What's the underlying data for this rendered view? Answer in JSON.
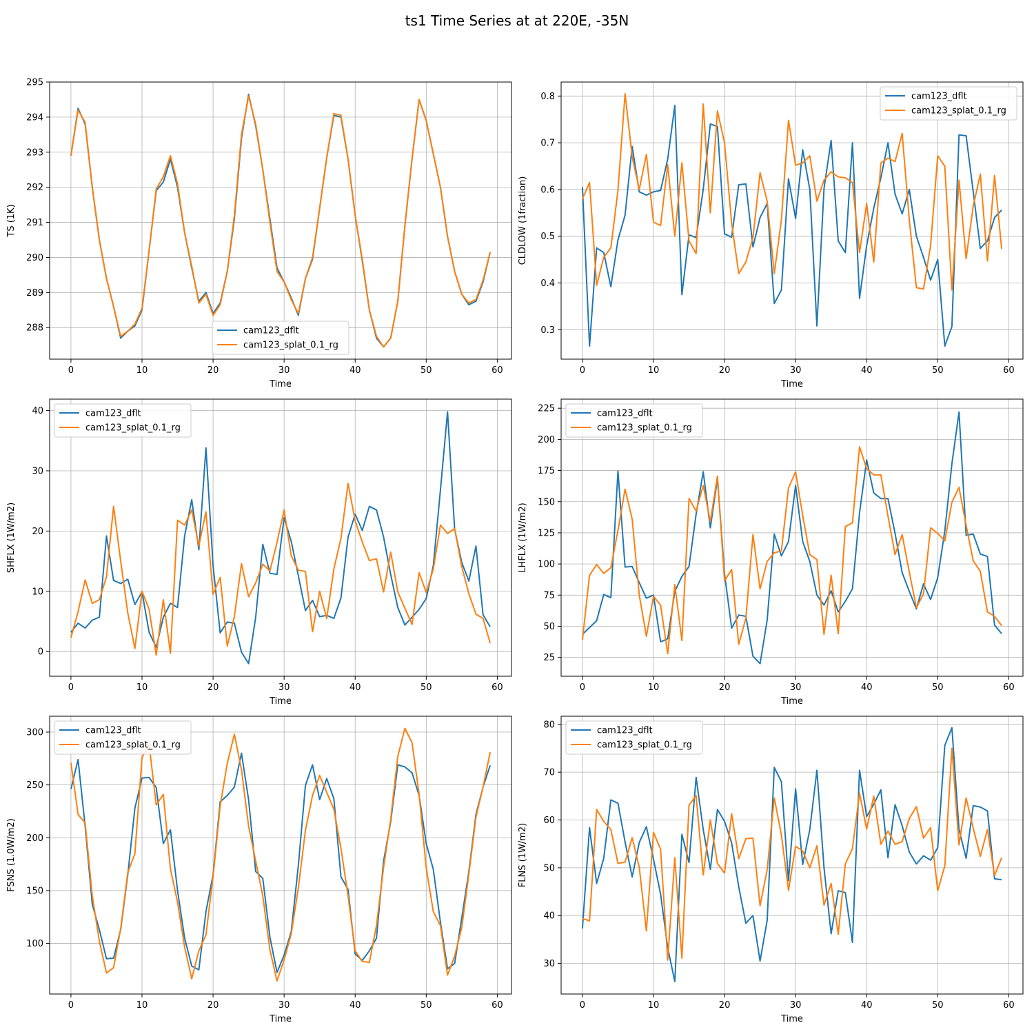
{
  "figure": {
    "title": "ts1 Time Series at at 220E, -35N"
  },
  "colors": {
    "series0": "#1f77b4",
    "series1": "#ff7f0e",
    "grid": "#b0b0b0",
    "axis": "#000000"
  },
  "chart_data": [
    {
      "type": "line",
      "xlabel": "Time",
      "ylabel": "TS (1K)",
      "xlim": [
        -3,
        62
      ],
      "ylim": [
        287.1,
        295.0
      ],
      "xticks": [
        0,
        10,
        20,
        30,
        40,
        50,
        60
      ],
      "yticks": [
        288,
        289,
        290,
        291,
        292,
        293,
        294,
        295
      ],
      "legend": "lower-center",
      "grid": true,
      "series": [
        {
          "name": "cam123_dflt",
          "values": [
            292.9,
            294.25,
            293.8,
            292.0,
            290.5,
            289.4,
            288.6,
            287.7,
            287.9,
            288.05,
            288.5,
            290.2,
            291.9,
            292.15,
            292.8,
            292.0,
            290.7,
            289.7,
            288.75,
            289.0,
            288.4,
            288.7,
            289.6,
            291.1,
            293.4,
            294.65,
            293.75,
            292.5,
            291.1,
            289.7,
            289.3,
            288.85,
            288.35,
            289.4,
            289.95,
            291.4,
            292.85,
            294.05,
            294.0,
            292.8,
            291.2,
            289.9,
            288.5,
            287.7,
            287.45,
            287.7,
            288.75,
            290.9,
            292.8,
            294.5,
            293.9,
            292.95,
            292.0,
            290.6,
            289.6,
            288.95,
            288.65,
            288.75,
            289.3,
            290.15
          ]
        },
        {
          "name": "cam123_splat_0.1_rg",
          "values": [
            292.9,
            294.2,
            293.85,
            292.0,
            290.5,
            289.4,
            288.6,
            287.75,
            287.9,
            288.1,
            288.55,
            290.2,
            291.95,
            292.3,
            292.9,
            292.1,
            290.7,
            289.75,
            288.7,
            288.95,
            288.35,
            288.65,
            289.6,
            291.2,
            293.5,
            294.6,
            293.8,
            292.5,
            291.0,
            289.6,
            289.3,
            288.8,
            288.4,
            289.4,
            290.0,
            291.4,
            292.85,
            294.1,
            294.05,
            292.8,
            291.2,
            289.95,
            288.5,
            287.75,
            287.45,
            287.7,
            288.75,
            290.9,
            292.8,
            294.5,
            293.9,
            292.95,
            292.0,
            290.6,
            289.6,
            288.95,
            288.7,
            288.8,
            289.35,
            290.15
          ]
        }
      ]
    },
    {
      "type": "line",
      "xlabel": "Time",
      "ylabel": "CLDLOW (1fraction)",
      "xlim": [
        -3,
        62
      ],
      "ylim": [
        0.237,
        0.83
      ],
      "xticks": [
        0,
        10,
        20,
        30,
        40,
        50,
        60
      ],
      "yticks": [
        0.3,
        0.4,
        0.5,
        0.6,
        0.7,
        0.8
      ],
      "legend": "upper-right",
      "grid": true,
      "series": [
        {
          "name": "cam123_dflt",
          "values": [
            0.605,
            0.265,
            0.475,
            0.465,
            0.392,
            0.492,
            0.545,
            0.692,
            0.595,
            0.588,
            0.595,
            0.598,
            0.665,
            0.78,
            0.375,
            0.503,
            0.497,
            0.6,
            0.74,
            0.735,
            0.505,
            0.498,
            0.61,
            0.612,
            0.477,
            0.54,
            0.57,
            0.356,
            0.385,
            0.623,
            0.538,
            0.685,
            0.6,
            0.308,
            0.602,
            0.705,
            0.49,
            0.465,
            0.7,
            0.367,
            0.48,
            0.56,
            0.625,
            0.7,
            0.59,
            0.548,
            0.6,
            0.5,
            0.455,
            0.406,
            0.45,
            0.265,
            0.307,
            0.717,
            0.715,
            0.595,
            0.474,
            0.49,
            0.54,
            0.556
          ]
        },
        {
          "name": "cam123_splat_0.1_rg",
          "values": [
            0.58,
            0.615,
            0.395,
            0.455,
            0.475,
            0.598,
            0.805,
            0.67,
            0.6,
            0.675,
            0.53,
            0.523,
            0.653,
            0.5,
            0.657,
            0.49,
            0.463,
            0.783,
            0.55,
            0.768,
            0.7,
            0.528,
            0.42,
            0.445,
            0.497,
            0.636,
            0.575,
            0.42,
            0.535,
            0.748,
            0.652,
            0.657,
            0.672,
            0.575,
            0.62,
            0.638,
            0.627,
            0.625,
            0.615,
            0.465,
            0.57,
            0.445,
            0.657,
            0.667,
            0.66,
            0.72,
            0.535,
            0.39,
            0.387,
            0.48,
            0.672,
            0.65,
            0.385,
            0.62,
            0.452,
            0.565,
            0.633,
            0.447,
            0.63,
            0.473
          ]
        }
      ]
    },
    {
      "type": "line",
      "xlabel": "Time",
      "ylabel": "SHFLX (1W/m2)",
      "xlim": [
        -3,
        62
      ],
      "ylim": [
        -4.1,
        41.9
      ],
      "xticks": [
        0,
        10,
        20,
        30,
        40,
        50,
        60
      ],
      "yticks": [
        0,
        10,
        20,
        30,
        40
      ],
      "legend": "upper-left",
      "grid": true,
      "series": [
        {
          "name": "cam123_dflt",
          "values": [
            3.2,
            4.7,
            3.9,
            5.2,
            5.7,
            19.2,
            11.8,
            11.3,
            12.0,
            7.8,
            9.9,
            3.2,
            0.7,
            5.7,
            8.0,
            7.3,
            19.2,
            25.2,
            16.9,
            33.8,
            14.3,
            3.1,
            4.9,
            4.7,
            -0.1,
            -2.0,
            5.7,
            17.8,
            13.0,
            12.8,
            22.2,
            18.3,
            12.6,
            6.8,
            8.5,
            5.8,
            6.0,
            5.5,
            8.9,
            19.0,
            22.8,
            20.1,
            24.1,
            23.5,
            19.0,
            12.8,
            7.3,
            4.4,
            5.7,
            7.0,
            8.8,
            14.3,
            26.8,
            39.8,
            20.3,
            14.8,
            11.7,
            17.5,
            6.1,
            4.1
          ]
        },
        {
          "name": "cam123_splat_0.1_rg",
          "values": [
            2.3,
            6.6,
            11.9,
            8.0,
            8.6,
            12.4,
            24.1,
            15.0,
            6.4,
            0.5,
            10.0,
            7.0,
            -0.6,
            8.6,
            -0.3,
            21.8,
            21.0,
            23.5,
            17.5,
            23.2,
            9.5,
            12.3,
            0.9,
            5.8,
            14.6,
            9.1,
            11.4,
            14.5,
            13.4,
            18.1,
            23.5,
            15.9,
            13.5,
            13.3,
            3.3,
            10.0,
            5.5,
            13.7,
            18.8,
            27.9,
            21.7,
            18.2,
            15.1,
            15.4,
            9.9,
            16.5,
            9.9,
            7.2,
            4.5,
            13.1,
            9.8,
            13.7,
            21.0,
            19.6,
            20.4,
            14.1,
            9.6,
            6.2,
            5.5,
            1.4
          ]
        }
      ]
    },
    {
      "type": "line",
      "xlabel": "Time",
      "ylabel": "LHFLX (1W/m2)",
      "xlim": [
        -3,
        62
      ],
      "ylim": [
        9.9,
        232.3
      ],
      "xticks": [
        0,
        10,
        20,
        30,
        40,
        50,
        60
      ],
      "yticks": [
        25,
        50,
        75,
        100,
        125,
        150,
        175,
        200,
        225
      ],
      "legend": "upper-left",
      "grid": true,
      "series": [
        {
          "name": "cam123_dflt",
          "values": [
            43.5,
            49.0,
            54.5,
            75.5,
            73.0,
            174.5,
            97.5,
            98.0,
            85.0,
            72.5,
            75.0,
            37.5,
            40.0,
            78.0,
            90.0,
            98.0,
            140.0,
            174.0,
            129.0,
            168.5,
            92.0,
            48.5,
            59.0,
            58.0,
            26.0,
            20.0,
            55.0,
            124.0,
            106.5,
            118.0,
            163.0,
            118.0,
            102.0,
            75.0,
            67.0,
            78.5,
            61.5,
            70.0,
            80.0,
            141.0,
            183.5,
            157.0,
            152.5,
            152.5,
            124.5,
            93.0,
            78.0,
            64.0,
            84.0,
            71.5,
            89.0,
            126.5,
            180.5,
            222.0,
            123.0,
            124.0,
            108.0,
            106.0,
            51.0,
            44.0
          ]
        },
        {
          "name": "cam123_splat_0.1_rg",
          "values": [
            39.0,
            91.0,
            99.5,
            92.5,
            97.0,
            127.0,
            160.0,
            136.0,
            75.0,
            42.0,
            74.0,
            67.0,
            28.0,
            83.5,
            38.5,
            152.5,
            142.5,
            163.0,
            134.0,
            170.5,
            86.5,
            95.5,
            35.5,
            56.5,
            123.5,
            80.0,
            102.0,
            109.0,
            110.5,
            161.0,
            174.0,
            139.0,
            107.5,
            103.5,
            43.5,
            91.0,
            44.0,
            130.0,
            133.0,
            194.0,
            176.5,
            171.5,
            171.5,
            138.5,
            107.5,
            123.5,
            93.5,
            65.0,
            76.0,
            129.0,
            124.5,
            118.5,
            149.5,
            161.5,
            131.0,
            102.5,
            94.0,
            61.5,
            58.0,
            50.5
          ]
        }
      ]
    },
    {
      "type": "line",
      "xlabel": "Time",
      "ylabel": "FSNS (1.0W/m2)",
      "xlim": [
        -3,
        62
      ],
      "ylim": [
        52.1,
        315.0
      ],
      "xticks": [
        0,
        10,
        20,
        30,
        40,
        50,
        60
      ],
      "yticks": [
        100,
        150,
        200,
        250,
        300
      ],
      "legend": "upper-left",
      "grid": true,
      "series": [
        {
          "name": "cam123_dflt",
          "values": [
            246.0,
            274.0,
            211.0,
            137.0,
            113.0,
            85.5,
            86.0,
            113.0,
            165.0,
            228.0,
            256.5,
            257.0,
            247.5,
            194.5,
            207.5,
            150.0,
            105.0,
            78.5,
            75.0,
            130.0,
            165.0,
            234.0,
            240.0,
            248.0,
            280.0,
            236.0,
            168.0,
            161.5,
            106.0,
            72.5,
            89.0,
            111.0,
            173.5,
            249.5,
            269.0,
            236.0,
            256.0,
            237.0,
            163.0,
            151.0,
            90.0,
            84.0,
            93.0,
            105.0,
            178.0,
            215.0,
            269.0,
            267.0,
            261.5,
            240.0,
            194.5,
            170.0,
            120.0,
            76.0,
            81.0,
            124.0,
            168.0,
            222.0,
            248.0,
            268.5
          ]
        },
        {
          "name": "cam123_splat_0.1_rg",
          "values": [
            271.0,
            222.0,
            214.0,
            145.0,
            102.0,
            72.0,
            77.0,
            114.0,
            167.0,
            185.0,
            276.0,
            288.5,
            231.0,
            241.0,
            170.5,
            139.0,
            96.5,
            66.5,
            93.0,
            108.0,
            163.0,
            230.0,
            270.5,
            298.0,
            264.5,
            211.0,
            178.0,
            145.0,
            94.0,
            64.5,
            84.5,
            109.0,
            152.5,
            207.0,
            240.0,
            259.0,
            243.0,
            227.0,
            190.0,
            145.0,
            93.0,
            83.0,
            82.0,
            117.0,
            172.0,
            217.5,
            277.0,
            303.5,
            290.0,
            241.0,
            171.5,
            130.0,
            117.0,
            70.0,
            88.0,
            115.0,
            165.5,
            219.5,
            248.0,
            281.0
          ]
        }
      ]
    },
    {
      "type": "line",
      "xlabel": "Time",
      "ylabel": "FLNS (1W/m2)",
      "xlim": [
        -3,
        62
      ],
      "ylim": [
        23.6,
        81.7
      ],
      "xticks": [
        0,
        10,
        20,
        30,
        40,
        50,
        60
      ],
      "yticks": [
        30,
        40,
        50,
        60,
        70,
        80
      ],
      "legend": "upper-left",
      "grid": true,
      "series": [
        {
          "name": "cam123_dflt",
          "values": [
            37.3,
            58.4,
            46.7,
            52.0,
            64.2,
            63.5,
            55.4,
            48.1,
            55.3,
            58.6,
            51.8,
            44.5,
            33.3,
            26.2,
            57.0,
            51.1,
            68.9,
            58.0,
            49.7,
            62.2,
            59.7,
            55.2,
            46.0,
            38.4,
            40.0,
            30.5,
            39.0,
            71.0,
            68.0,
            47.3,
            66.5,
            50.7,
            58.0,
            70.4,
            50.0,
            36.2,
            45.2,
            44.8,
            34.4,
            70.4,
            60.7,
            63.3,
            66.3,
            52.1,
            63.2,
            58.8,
            53.3,
            50.8,
            52.5,
            51.6,
            54.2,
            75.6,
            79.3,
            58.0,
            52.0,
            63.0,
            62.7,
            61.9,
            47.7,
            47.5
          ]
        },
        {
          "name": "cam123_splat_0.1_rg",
          "values": [
            39.4,
            38.9,
            62.2,
            59.7,
            58.0,
            50.9,
            51.2,
            56.3,
            50.1,
            36.8,
            57.4,
            53.9,
            30.7,
            52.1,
            31.1,
            63.1,
            65.1,
            48.5,
            60.0,
            50.9,
            48.9,
            61.3,
            51.9,
            56.1,
            56.2,
            42.1,
            49.6,
            64.6,
            56.9,
            45.3,
            54.5,
            53.5,
            50.0,
            54.6,
            42.2,
            46.7,
            36.1,
            50.8,
            54.0,
            65.6,
            58.1,
            65.0,
            54.9,
            57.7,
            54.9,
            55.5,
            60.3,
            62.8,
            56.2,
            58.4,
            45.2,
            50.4,
            75.0,
            54.8,
            64.6,
            58.3,
            52.4,
            58.0,
            48.4,
            52.1
          ]
        }
      ]
    }
  ]
}
